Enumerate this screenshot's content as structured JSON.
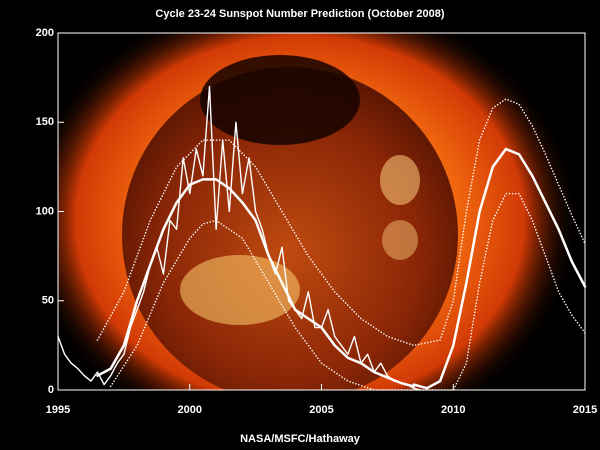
{
  "chart_data": {
    "type": "line",
    "title": "Cycle 23-24 Sunspot Number Prediction (October 2008)",
    "footer": "NASA/MSFC/Hathaway",
    "xlim": [
      1995,
      2015
    ],
    "xticks": [
      1995,
      2000,
      2005,
      2010,
      2015
    ],
    "ylim": [
      0,
      200
    ],
    "yticks": [
      0,
      50,
      100,
      150,
      200
    ],
    "series": [
      {
        "color": "#ffffff",
        "style": "solid",
        "width": 1.4,
        "x": [
          1995.0,
          1995.25,
          1995.5,
          1995.75,
          1996.0,
          1996.25,
          1996.5,
          1996.75,
          1997.0,
          1997.25,
          1997.5,
          1997.75,
          1998.0,
          1998.25,
          1998.5,
          1998.75,
          1999.0,
          1999.25,
          1999.5,
          1999.75,
          2000.0,
          2000.25,
          2000.5,
          2000.75,
          2001.0,
          2001.25,
          2001.5,
          2001.75,
          2002.0,
          2002.25,
          2002.5,
          2002.75,
          2003.0,
          2003.25,
          2003.5,
          2003.75,
          2004.0,
          2004.25,
          2004.5,
          2004.75,
          2005.0,
          2005.25,
          2005.5,
          2005.75,
          2006.0,
          2006.25,
          2006.5,
          2006.75,
          2007.0,
          2007.25,
          2007.5,
          2007.75,
          2008.0,
          2008.25,
          2008.5,
          2008.75
        ],
        "values": [
          30,
          20,
          15,
          12,
          8,
          5,
          10,
          3,
          8,
          15,
          20,
          35,
          45,
          55,
          70,
          80,
          65,
          95,
          90,
          130,
          110,
          135,
          120,
          170,
          90,
          140,
          100,
          150,
          110,
          130,
          100,
          90,
          75,
          65,
          80,
          50,
          45,
          40,
          55,
          35,
          35,
          45,
          30,
          25,
          20,
          30,
          15,
          20,
          10,
          15,
          8,
          5,
          4,
          3,
          1,
          0
        ]
      },
      {
        "color": "#ffffff",
        "style": "solid",
        "width": 2.5,
        "x": [
          1996.5,
          1997,
          1997.5,
          1998,
          1998.5,
          1999,
          1999.5,
          2000,
          2000.5,
          2001,
          2001.5,
          2002,
          2002.5,
          2003,
          2003.5,
          2004,
          2004.5,
          2005,
          2005.5,
          2006,
          2006.5,
          2007,
          2007.5,
          2008,
          2008.5
        ],
        "values": [
          8,
          12,
          25,
          50,
          70,
          90,
          105,
          115,
          118,
          118,
          113,
          105,
          95,
          75,
          60,
          45,
          40,
          35,
          25,
          18,
          15,
          10,
          7,
          4,
          2
        ]
      },
      {
        "color": "#ffffff",
        "style": "solid",
        "width": 2.5,
        "x": [
          2008.5,
          2009,
          2009.5,
          2010,
          2010.5,
          2011,
          2011.5,
          2012,
          2012.5,
          2013,
          2013.5,
          2014,
          2014.5,
          2015
        ],
        "values": [
          3,
          1,
          5,
          25,
          60,
          100,
          125,
          135,
          132,
          120,
          105,
          90,
          72,
          58
        ]
      },
      {
        "color": "#ffffff",
        "style": "dotted",
        "width": 1.5,
        "x": [
          1996.5,
          1997.5,
          1998.5,
          1999.5,
          2000.5,
          2001.5,
          2002.5,
          2003.5,
          2004.5,
          2005.5,
          2006.5,
          2007.5,
          2008.5,
          2009.5,
          2010,
          2010.5,
          2011,
          2011.5,
          2012,
          2012.5,
          2013,
          2013.5,
          2014,
          2014.5,
          2015
        ],
        "values": [
          28,
          55,
          95,
          125,
          140,
          140,
          125,
          100,
          75,
          55,
          40,
          30,
          25,
          28,
          50,
          100,
          140,
          158,
          163,
          160,
          148,
          132,
          115,
          98,
          82
        ]
      },
      {
        "color": "#ffffff",
        "style": "dotted",
        "width": 1.5,
        "x": [
          1997,
          1998,
          1999,
          2000,
          2000.5,
          2001,
          2002,
          2003,
          2004,
          2005,
          2006,
          2007,
          2008,
          2009,
          2010,
          2010.5,
          2011,
          2011.5,
          2012,
          2012.5,
          2013,
          2013.5,
          2014,
          2014.5,
          2015
        ],
        "values": [
          2,
          25,
          60,
          85,
          93,
          95,
          85,
          60,
          35,
          15,
          5,
          0,
          0,
          0,
          0,
          15,
          60,
          95,
          110,
          110,
          95,
          75,
          55,
          42,
          32
        ]
      }
    ]
  }
}
